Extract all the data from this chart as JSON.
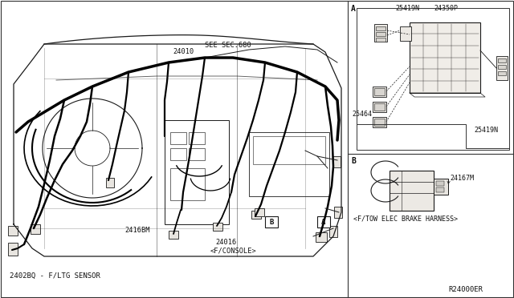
{
  "bg_color": "#ffffff",
  "line_color": "#1a1a1a",
  "border_color": "#333333",
  "text_color": "#111111",
  "labels": {
    "main_part": "2402BQ - F/LTG SENSOR",
    "ref_code": "R24000ER",
    "label_24010": "24010",
    "label_see": "SEE SEC.680",
    "label_24168m": "2416BM",
    "label_24016": "24016",
    "label_fconsole": "<F/CONSOLE>",
    "panel_a": "A",
    "panel_b": "B",
    "label_25419n_top": "25419N",
    "label_24350p": "24350P",
    "label_25464": "25464",
    "label_25419n_bot": "25419N",
    "label_24167m": "24167M",
    "label_ftow": "<F/TOW ELEC BRAKE HARNESS>"
  }
}
